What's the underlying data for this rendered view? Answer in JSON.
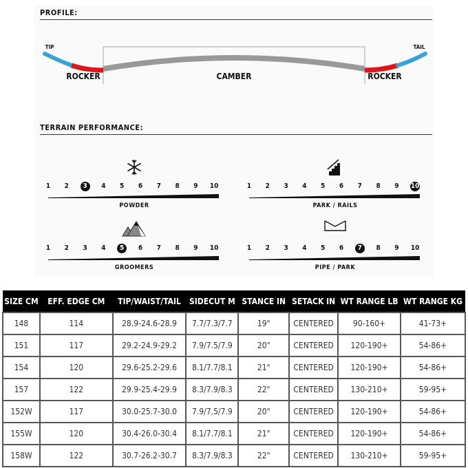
{
  "profile": {
    "title": "PROFILE:",
    "tip": "TIP",
    "tail": "TAIL",
    "left": "ROCKER",
    "center": "CAMBER",
    "right": "ROCKER",
    "colors": {
      "tip": "#3aa3d6",
      "rocker": "#d9161c",
      "camber": "#999999"
    }
  },
  "terrain": {
    "title": "TERRAIN PERFORMANCE:",
    "ratings": [
      {
        "name": "POWDER",
        "value": 3,
        "icon": "snowflake-icon"
      },
      {
        "name": "PARK / RAILS",
        "value": 10,
        "icon": "stair-rail-icon"
      },
      {
        "name": "GROOMERS",
        "value": 5,
        "icon": "mountains-icon"
      },
      {
        "name": "PIPE / PARK",
        "value": 7,
        "icon": "halfpipe-icon"
      }
    ],
    "scale": [
      "1",
      "2",
      "3",
      "4",
      "5",
      "6",
      "7",
      "8",
      "9",
      "10"
    ]
  },
  "table": {
    "headers": [
      "SIZE CM",
      "EFF. EDGE CM",
      "TIP/WAIST/TAIL",
      "SIDECUT M",
      "STANCE IN",
      "SETACK IN",
      "WT RANGE LB",
      "WT RANGE KG"
    ],
    "rows": [
      [
        "148",
        "114",
        "28.9-24.6-28.9",
        "7.7/7.3/7.7",
        "19\"",
        "CENTERED",
        "90-160+",
        "41-73+"
      ],
      [
        "151",
        "117",
        "29.2-24.9-29.2",
        "7.9/7.5/7.9",
        "20\"",
        "CENTERED",
        "120-190+",
        "54-86+"
      ],
      [
        "154",
        "120",
        "29.6-25.2-29.6",
        "8.1/7.7/8.1",
        "21\"",
        "CENTERED",
        "120-190+",
        "54-86+"
      ],
      [
        "157",
        "122",
        "29.9-25.4-29.9",
        "8.3/7.9/8.3",
        "22\"",
        "CENTERED",
        "130-210+",
        "59-95+"
      ],
      [
        "152W",
        "117",
        "30.0-25.7-30.0",
        "7.9/7.5/7.9",
        "20\"",
        "CENTERED",
        "120-190+",
        "54-86+"
      ],
      [
        "155W",
        "120",
        "30.4-26.0-30.4",
        "8.1/7.7/8.1",
        "21\"",
        "CENTERED",
        "120-190+",
        "54-86+"
      ],
      [
        "158W",
        "122",
        "30.7-26.2-30.7",
        "8.3/7.9/8.3",
        "22\"",
        "CENTERED",
        "130-210+",
        "59-95+"
      ]
    ]
  }
}
